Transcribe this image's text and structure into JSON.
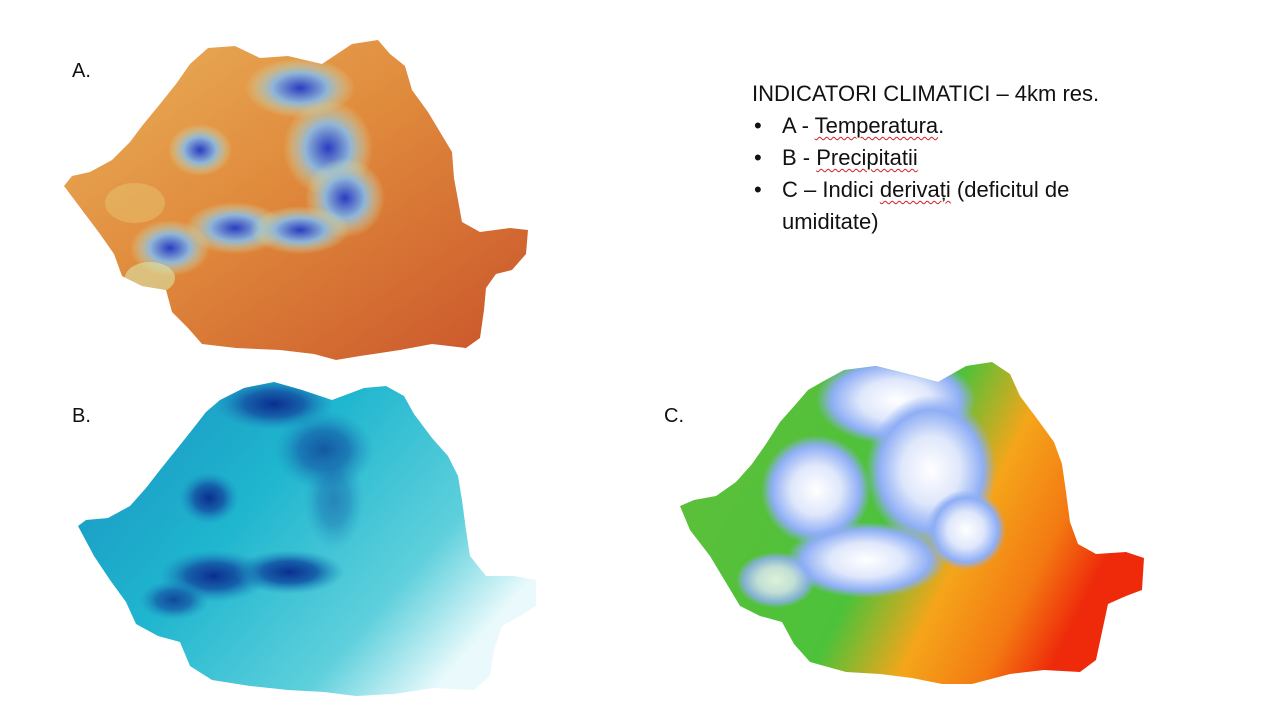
{
  "panels": {
    "a": {
      "label": "A."
    },
    "b": {
      "label": "B."
    },
    "c": {
      "label": "C."
    }
  },
  "legend": {
    "title": "INDICATORI CLIMATICI – 4km res.",
    "items": [
      {
        "prefix": "A - ",
        "term": "Temperatura",
        "suffix": "."
      },
      {
        "prefix": "B - ",
        "term": "Precipitatii",
        "suffix": ""
      },
      {
        "prefix": "C – ",
        "term_plain": "Indici ",
        "term": "derivați",
        "suffix": " (deficitul de umiditate)"
      }
    ]
  },
  "colors": {
    "temperature_warm": "#cf5a2a",
    "temperature_mid": "#e9a24a",
    "temperature_cool": "#c8e0b0",
    "temperature_cold": "#1f2fb0",
    "precip_low": "#e6f8fb",
    "precip_mid": "#1fb6cf",
    "precip_high": "#0b2f8f",
    "deficit_low": "#ffffff",
    "deficit_mid1": "#8eaef5",
    "deficit_mid2": "#4cc23a",
    "deficit_mid3": "#f5a51a",
    "deficit_high": "#ee2a0a"
  }
}
